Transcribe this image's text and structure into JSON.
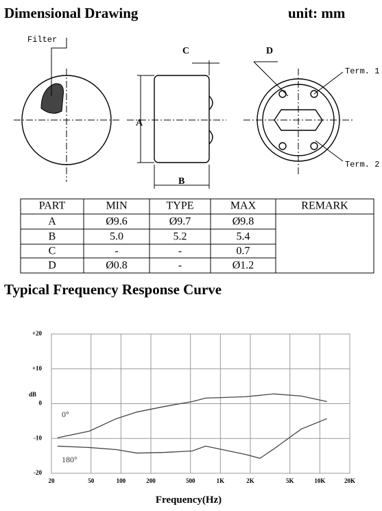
{
  "header": {
    "title": "Dimensional Drawing",
    "unit": "unit: mm"
  },
  "drawing": {
    "filter": "Filter",
    "c": "C",
    "d": "D",
    "a": "A",
    "b": "B",
    "term1": "Term. 1",
    "term2": "Term. 2"
  },
  "table": {
    "headers": [
      "PART",
      "MIN",
      "TYPE",
      "MAX",
      "REMARK"
    ],
    "rows": [
      [
        "A",
        "Ø9.6",
        "Ø9.7",
        "Ø9.8"
      ],
      [
        "B",
        "5.0",
        "5.2",
        "5.4"
      ],
      [
        "C",
        "-",
        "-",
        "0.7"
      ],
      [
        "D",
        "Ø0.8",
        "-",
        "Ø1.2"
      ]
    ]
  },
  "section_title": "Typical Frequency Response Curve",
  "chart_data": {
    "type": "line",
    "x_label": "Frequency(Hz)",
    "y_label": "dB",
    "xscale": "log",
    "x": [
      23,
      48,
      90,
      145,
      275,
      520,
      710,
      1800,
      2500,
      3450,
      6500,
      11800
    ],
    "series": [
      {
        "name": "0°",
        "color": "#444444",
        "values": [
          -9.8,
          -7.9,
          -4.3,
          -2.4,
          -0.8,
          0.6,
          1.6,
          2,
          2.4,
          2.8,
          2.2,
          0.6
        ]
      },
      {
        "name": "180°",
        "color": "#444444",
        "values": [
          -12.2,
          -12.6,
          -13.2,
          -14.2,
          -14,
          -13.6,
          -12.2,
          -14.6,
          -15.7,
          -13,
          -7.3,
          -4.3
        ]
      }
    ],
    "xlim": [
      20,
      20000
    ],
    "xticks": [
      20,
      50,
      100,
      200,
      500,
      {
        "value": 1000,
        "label": "1K"
      },
      {
        "value": 2000,
        "label": "2K"
      },
      {
        "value": 5000,
        "label": "5K"
      },
      {
        "value": 10000,
        "label": "10K"
      },
      {
        "value": 20000,
        "label": "20K"
      }
    ],
    "ylim": [
      -20,
      20
    ],
    "yticks": [
      -20,
      -10,
      0,
      {
        "value": 10,
        "label": "+10"
      },
      {
        "value": 20,
        "label": "+20"
      }
    ],
    "grid": true
  }
}
